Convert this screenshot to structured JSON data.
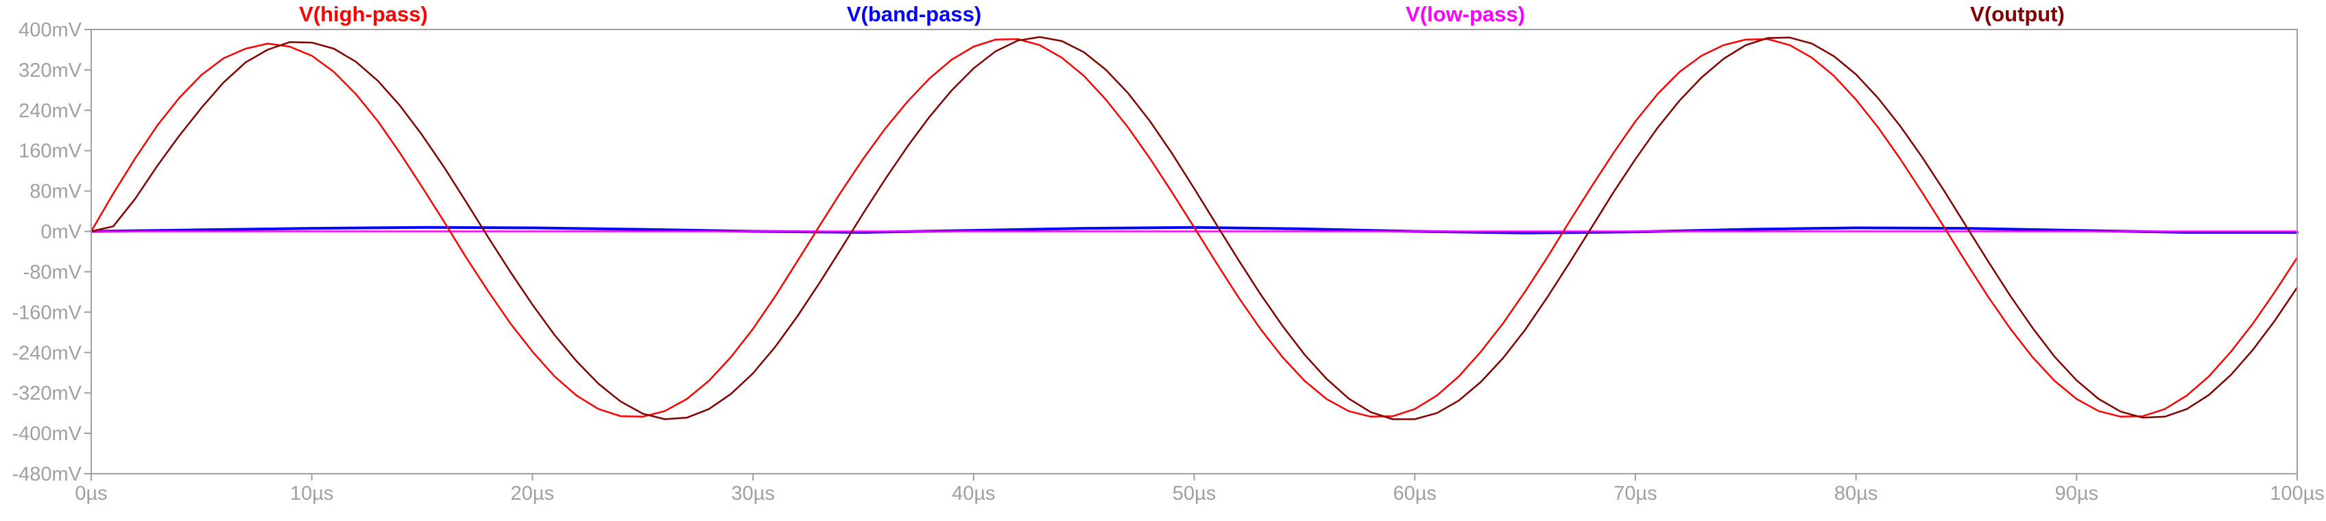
{
  "chart_data": {
    "type": "line",
    "title": "",
    "xlabel": "",
    "ylabel": "",
    "xlim": [
      0,
      100
    ],
    "ylim": [
      -480,
      400
    ],
    "x_unit": "µs",
    "y_unit": "mV",
    "grid": false,
    "legend_placement": "top",
    "x_ticks": [
      0,
      10,
      20,
      30,
      40,
      50,
      60,
      70,
      80,
      90,
      100
    ],
    "x_tick_labels": [
      "0µs",
      "10µs",
      "20µs",
      "30µs",
      "40µs",
      "50µs",
      "60µs",
      "70µs",
      "80µs",
      "90µs",
      "100µs"
    ],
    "y_ticks": [
      400,
      320,
      240,
      160,
      80,
      0,
      -80,
      -160,
      -240,
      -320,
      -400,
      -480
    ],
    "y_tick_labels": [
      "400mV",
      "320mV",
      "240mV",
      "160mV",
      "80mV",
      "0mV",
      "-80mV",
      "-160mV",
      "-240mV",
      "-320mV",
      "-400mV",
      "-480mV"
    ],
    "series": [
      {
        "name": "V(high-pass)",
        "color": "#ff0000",
        "x": [
          0,
          1,
          2,
          3,
          4,
          5,
          6,
          7,
          8,
          9,
          10,
          11,
          12,
          13,
          14,
          15,
          16,
          17,
          18,
          19,
          20,
          21,
          22,
          23,
          24,
          25,
          26,
          27,
          28,
          29,
          30,
          31,
          32,
          33,
          34,
          35,
          36,
          37,
          38,
          39,
          40,
          41,
          42,
          43,
          44,
          45,
          46,
          47,
          48,
          49,
          50,
          51,
          52,
          53,
          54,
          55,
          56,
          57,
          58,
          59,
          60,
          61,
          62,
          63,
          64,
          65,
          66,
          67,
          68,
          69,
          70,
          71,
          72,
          73,
          74,
          75,
          76,
          77,
          78,
          79,
          80,
          81,
          82,
          83,
          84,
          85,
          86,
          87,
          88,
          89,
          90,
          91,
          92,
          93,
          94,
          95,
          96,
          97,
          98,
          99,
          100
        ],
        "values": [
          0,
          75,
          145,
          210,
          265,
          310,
          343,
          362,
          372,
          366,
          348,
          316,
          272,
          218,
          155,
          88,
          19,
          -52,
          -119,
          -182,
          -238,
          -287,
          -325,
          -352,
          -366,
          -367,
          -356,
          -332,
          -296,
          -249,
          -193,
          -129,
          -60,
          10,
          79,
          144,
          204,
          257,
          303,
          340,
          366,
          380,
          381,
          369,
          344,
          308,
          261,
          206,
          144,
          77,
          8,
          -62,
          -130,
          -193,
          -249,
          -296,
          -332,
          -356,
          -367,
          -366,
          -352,
          -325,
          -287,
          -238,
          -182,
          -119,
          -52,
          19,
          88,
          155,
          218,
          272,
          316,
          348,
          369,
          380,
          381,
          369,
          344,
          308,
          261,
          206,
          144,
          77,
          8,
          -62,
          -130,
          -193,
          -249,
          -296,
          -332,
          -356,
          -367,
          -366,
          -352,
          -325,
          -287,
          -238,
          -182,
          -119,
          -52
        ]
      },
      {
        "name": "V(band-pass)",
        "color": "#0000ff",
        "x": [
          0,
          5,
          10,
          15,
          20,
          25,
          30,
          35,
          40,
          45,
          50,
          55,
          60,
          65,
          70,
          75,
          80,
          85,
          90,
          95,
          100
        ],
        "values": [
          0,
          3,
          6,
          8,
          7,
          4,
          0,
          -2,
          2,
          6,
          8,
          5,
          0,
          -3,
          -1,
          4,
          7,
          6,
          2,
          -2,
          -2
        ]
      },
      {
        "name": "V(low-pass)",
        "color": "#ff00ff",
        "x": [
          0,
          10,
          20,
          30,
          40,
          50,
          60,
          70,
          80,
          90,
          100
        ],
        "values": [
          0,
          0,
          0,
          0,
          0,
          0,
          0,
          0,
          0,
          0,
          0
        ]
      },
      {
        "name": "V(output)",
        "color": "#800000",
        "x": [
          0,
          1,
          2,
          3,
          4,
          5,
          6,
          7,
          8,
          9,
          10,
          11,
          12,
          13,
          14,
          15,
          16,
          17,
          18,
          19,
          20,
          21,
          22,
          23,
          24,
          25,
          26,
          27,
          28,
          29,
          30,
          31,
          32,
          33,
          34,
          35,
          36,
          37,
          38,
          39,
          40,
          41,
          42,
          43,
          44,
          45,
          46,
          47,
          48,
          49,
          50,
          51,
          52,
          53,
          54,
          55,
          56,
          57,
          58,
          59,
          60,
          61,
          62,
          63,
          64,
          65,
          66,
          67,
          68,
          69,
          70,
          71,
          72,
          73,
          74,
          75,
          76,
          77,
          78,
          79,
          80,
          81,
          82,
          83,
          84,
          85,
          86,
          87,
          88,
          89,
          90,
          91,
          92,
          93,
          94,
          95,
          96,
          97,
          98,
          99,
          100
        ],
        "values": [
          0,
          10,
          65,
          130,
          190,
          245,
          295,
          335,
          360,
          375,
          374,
          362,
          336,
          298,
          249,
          191,
          127,
          58,
          -12,
          -80,
          -145,
          -205,
          -257,
          -302,
          -337,
          -361,
          -372,
          -369,
          -352,
          -322,
          -281,
          -229,
          -169,
          -103,
          -34,
          36,
          104,
          168,
          227,
          279,
          323,
          357,
          378,
          385,
          377,
          355,
          320,
          274,
          218,
          154,
          85,
          14,
          -56,
          -124,
          -187,
          -244,
          -292,
          -331,
          -358,
          -372,
          -372,
          -360,
          -335,
          -298,
          -251,
          -195,
          -131,
          -63,
          7,
          77,
          143,
          205,
          259,
          305,
          342,
          369,
          383,
          384,
          372,
          347,
          311,
          264,
          209,
          147,
          80,
          10,
          -60,
          -128,
          -191,
          -248,
          -295,
          -332,
          -357,
          -369,
          -367,
          -352,
          -324,
          -284,
          -234,
          -176,
          -111
        ]
      }
    ]
  }
}
